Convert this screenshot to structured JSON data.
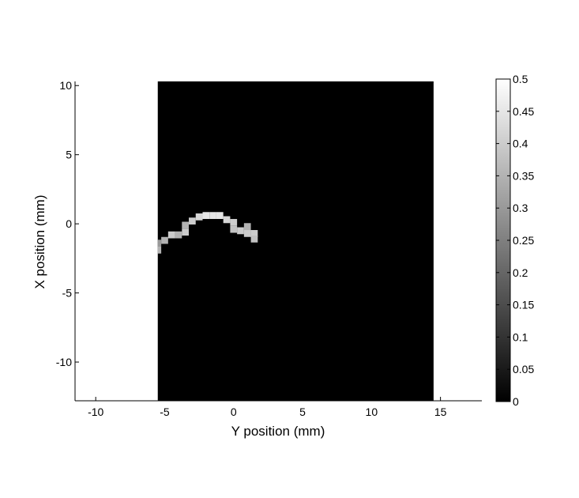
{
  "chart_data": {
    "type": "heatmap",
    "title": "",
    "xlabel": "Y position (mm)",
    "ylabel": "X position (mm)",
    "xlim": [
      -11.5,
      18
    ],
    "ylim": [
      -12.8,
      10.3
    ],
    "x_ticks": [
      -10,
      -5,
      0,
      5,
      10,
      15
    ],
    "y_ticks": [
      10,
      5,
      0,
      -5,
      -10
    ],
    "x_tick_labels": [
      "-10",
      "-5",
      "0",
      "5",
      "10",
      "15"
    ],
    "y_tick_labels": [
      "10",
      "5",
      "0",
      "-5",
      "-10"
    ],
    "image_extent": {
      "x": [
        -5.5,
        14.5
      ],
      "y": [
        -12.8,
        10.3
      ]
    },
    "colormap": "gray",
    "background_value": 0,
    "clim": [
      0,
      0.5
    ],
    "colorbar": {
      "ticks": [
        0,
        0.05,
        0.1,
        0.15,
        0.2,
        0.25,
        0.3,
        0.35,
        0.4,
        0.45,
        0.5
      ],
      "tick_labels": [
        "0",
        "0.05",
        "0.1",
        "0.15",
        "0.2",
        "0.25",
        "0.3",
        "0.35",
        "0.4",
        "0.45",
        "0.5"
      ]
    },
    "cells": [
      {
        "x": -5.5,
        "y": -1.9,
        "value": 0.35
      },
      {
        "x": -5.5,
        "y": -1.4,
        "value": 0.3
      },
      {
        "x": -5.0,
        "y": -1.2,
        "value": 0.35
      },
      {
        "x": -4.5,
        "y": -0.8,
        "value": 0.4
      },
      {
        "x": -4.0,
        "y": -0.8,
        "value": 0.35
      },
      {
        "x": -3.5,
        "y": -0.6,
        "value": 0.4
      },
      {
        "x": -3.5,
        "y": -0.1,
        "value": 0.35
      },
      {
        "x": -3.0,
        "y": 0.2,
        "value": 0.4
      },
      {
        "x": -2.5,
        "y": 0.5,
        "value": 0.42
      },
      {
        "x": -2.0,
        "y": 0.6,
        "value": 0.45
      },
      {
        "x": -1.5,
        "y": 0.6,
        "value": 0.45
      },
      {
        "x": -1.0,
        "y": 0.6,
        "value": 0.45
      },
      {
        "x": -0.5,
        "y": 0.3,
        "value": 0.42
      },
      {
        "x": 0.0,
        "y": 0.1,
        "value": 0.4
      },
      {
        "x": 0.0,
        "y": -0.4,
        "value": 0.38
      },
      {
        "x": 0.5,
        "y": -0.5,
        "value": 0.4
      },
      {
        "x": 1.0,
        "y": -0.2,
        "value": 0.35
      },
      {
        "x": 1.0,
        "y": -0.7,
        "value": 0.4
      },
      {
        "x": 1.5,
        "y": -0.7,
        "value": 0.4
      },
      {
        "x": 1.5,
        "y": -1.1,
        "value": 0.38
      }
    ]
  }
}
